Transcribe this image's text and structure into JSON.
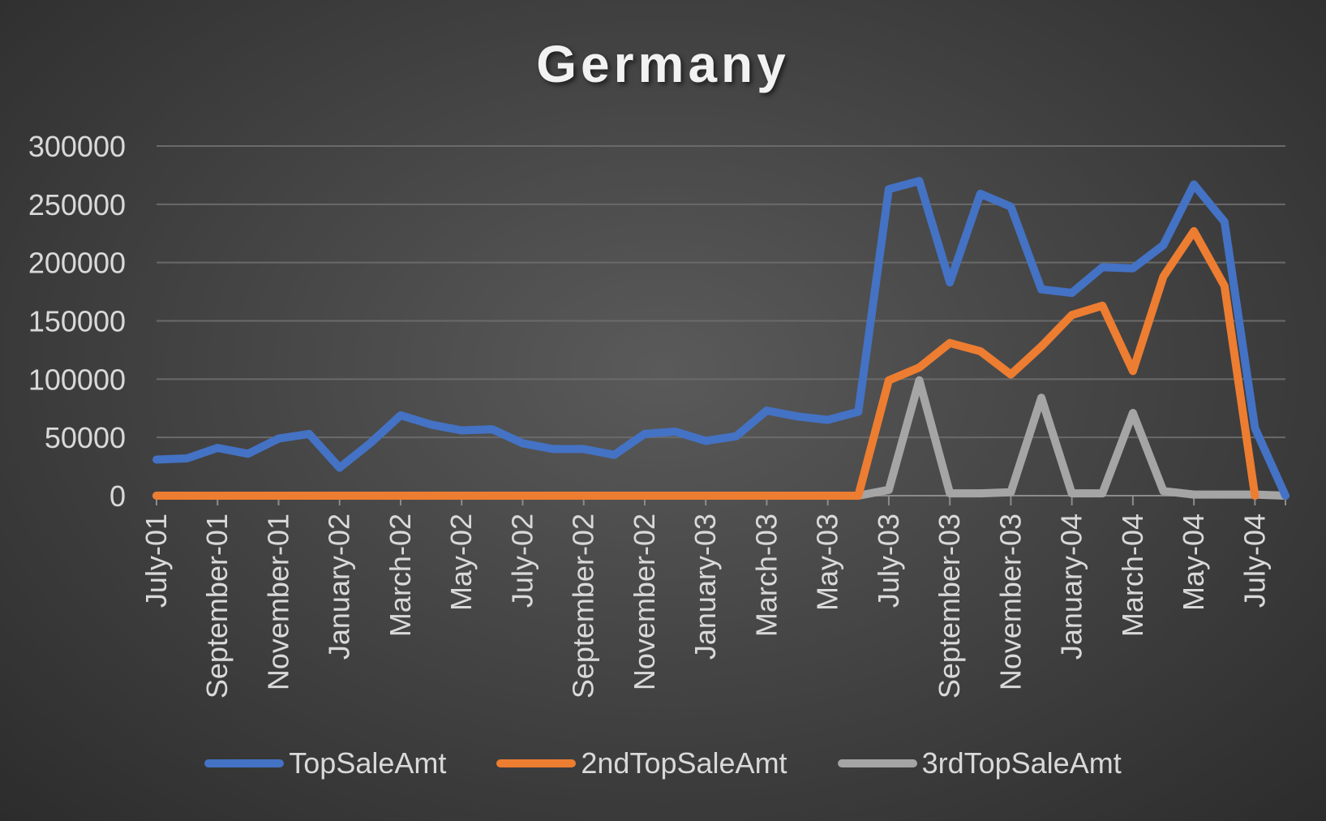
{
  "chart_data": {
    "type": "line",
    "title": "Germany",
    "xlabel": "",
    "ylabel": "",
    "ylim": [
      0,
      300000
    ],
    "yticks": [
      "0",
      "50000",
      "100000",
      "150000",
      "200000",
      "250000",
      "300000"
    ],
    "grid": true,
    "legend_position": "bottom",
    "categories": [
      "July-01",
      "August-01",
      "September-01",
      "October-01",
      "November-01",
      "December-01",
      "January-02",
      "February-02",
      "March-02",
      "April-02",
      "May-02",
      "June-02",
      "July-02",
      "August-02",
      "September-02",
      "October-02",
      "November-02",
      "December-02",
      "January-03",
      "February-03",
      "March-03",
      "April-03",
      "May-03",
      "June-03",
      "July-03",
      "August-03",
      "September-03",
      "October-03",
      "November-03",
      "December-03",
      "January-04",
      "February-04",
      "March-04",
      "April-04",
      "May-04",
      "June-04",
      "July-04",
      "August-04"
    ],
    "xtick_labels": [
      "July-01",
      "September-01",
      "November-01",
      "January-02",
      "March-02",
      "May-02",
      "July-02",
      "September-02",
      "November-02",
      "January-03",
      "March-03",
      "May-03",
      "July-03",
      "September-03",
      "November-03",
      "January-04",
      "March-04",
      "May-04",
      "July-04"
    ],
    "series": [
      {
        "name": "TopSaleAmt",
        "color": "#4472c4",
        "values": [
          31000,
          32000,
          41000,
          36000,
          49000,
          53000,
          24000,
          45000,
          69000,
          61000,
          56000,
          57000,
          45000,
          40000,
          40000,
          35000,
          53000,
          55000,
          47000,
          51000,
          73000,
          68000,
          65000,
          72000,
          263000,
          270000,
          183000,
          259000,
          248000,
          177000,
          174000,
          196000,
          195000,
          215000,
          267000,
          235000,
          58000,
          0
        ]
      },
      {
        "name": "2ndTopSaleAmt",
        "color": "#ed7d31",
        "values": [
          0,
          0,
          0,
          0,
          0,
          0,
          0,
          0,
          0,
          0,
          0,
          0,
          0,
          0,
          0,
          0,
          0,
          0,
          0,
          0,
          0,
          0,
          0,
          0,
          99000,
          110000,
          131000,
          124000,
          104000,
          128000,
          155000,
          163000,
          107000,
          188000,
          227000,
          180000,
          0,
          null
        ]
      },
      {
        "name": "3rdTopSaleAmt",
        "color": "#a5a5a5",
        "values": [
          0,
          0,
          0,
          0,
          0,
          0,
          0,
          0,
          0,
          0,
          0,
          0,
          0,
          0,
          0,
          0,
          0,
          0,
          0,
          0,
          0,
          0,
          0,
          0,
          5000,
          99000,
          2000,
          2000,
          3000,
          84000,
          2000,
          2000,
          71000,
          4000,
          1000,
          1000,
          1000,
          0
        ]
      }
    ]
  }
}
